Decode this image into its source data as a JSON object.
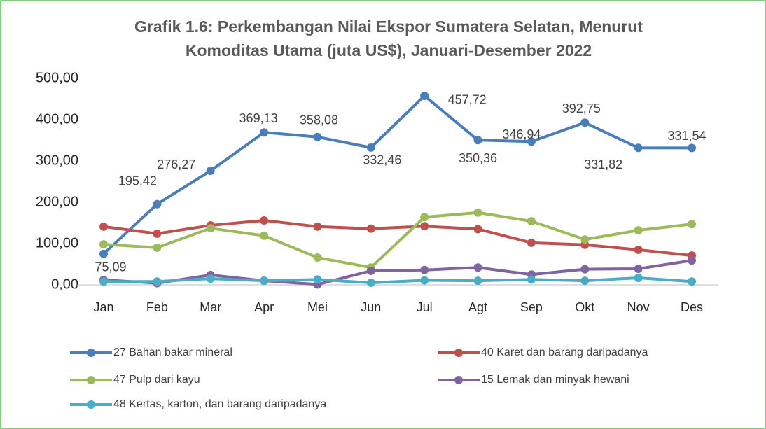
{
  "chart_data": {
    "type": "line",
    "title": [
      "Grafik 1.6: Perkembangan Nilai Ekspor Sumatera Selatan, Menurut",
      "Komoditas Utama (juta US$), Januari-Desember 2022"
    ],
    "categories": [
      "Jan",
      "Feb",
      "Mar",
      "Apr",
      "Mei",
      "Jun",
      "Jul",
      "Agt",
      "Sep",
      "Okt",
      "Nov",
      "Des"
    ],
    "ylim": [
      0,
      500
    ],
    "yticks": [
      {
        "value": 0,
        "label": "0,00"
      },
      {
        "value": 100,
        "label": "100,00"
      },
      {
        "value": 200,
        "label": "200,00"
      },
      {
        "value": 300,
        "label": "300,00"
      },
      {
        "value": 400,
        "label": "400,00"
      },
      {
        "value": 500,
        "label": "500,00"
      }
    ],
    "series": [
      {
        "name": "27 Bahan bakar mineral",
        "color": "#4a7ebb",
        "values": [
          75.09,
          195.42,
          276.27,
          369.13,
          358.08,
          332.46,
          457.72,
          350.36,
          346.94,
          392.75,
          331.82,
          331.54
        ],
        "value_labels": [
          "75,09",
          "195,42",
          "276,27",
          "369,13",
          "358,08",
          "332,46",
          "457,72",
          "350,36",
          "346,94",
          "392,75",
          "331,82",
          "331,54"
        ]
      },
      {
        "name": "40 Karet dan barang daripadanya",
        "color": "#c0504d",
        "values": [
          141,
          124,
          144,
          156,
          141,
          136,
          142,
          135,
          102,
          97,
          85,
          71
        ]
      },
      {
        "name": "47 Pulp dari kayu",
        "color": "#9bbb59",
        "values": [
          98,
          90,
          137,
          119,
          66,
          42,
          164,
          175,
          154,
          110,
          132,
          147
        ]
      },
      {
        "name": "15 Lemak dan minyak hewani",
        "color": "#8064a2",
        "values": [
          12,
          4,
          24,
          10,
          1,
          34,
          36,
          42,
          25,
          38,
          39,
          59
        ]
      },
      {
        "name": "48 Kertas, karton, dan barang daripadanya",
        "color": "#4bacc6",
        "values": [
          8,
          8,
          15,
          10,
          13,
          5,
          11,
          10,
          13,
          10,
          17,
          8
        ]
      }
    ]
  }
}
